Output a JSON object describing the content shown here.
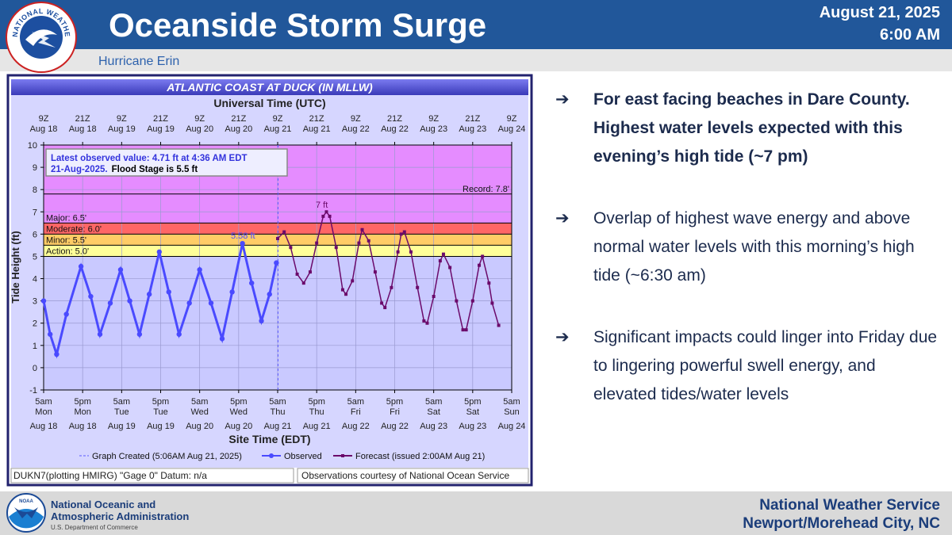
{
  "header": {
    "title": "Oceanside Storm Surge",
    "subtitle": "Hurricane Erin",
    "date": "August 21, 2025",
    "time": "6:00 AM",
    "logo_text": "NATIONAL WEATHER SERVICE"
  },
  "chart_data": {
    "type": "line",
    "title": "ATLANTIC COAST AT DUCK (IN MLLW)",
    "top_axis_label": "Universal Time (UTC)",
    "xlabel": "Site Time (EDT)",
    "ylabel": "Tide Height (ft)",
    "xlim": [
      "Aug 18 05:00",
      "Aug 24 05:00"
    ],
    "ylim": [
      -1,
      10
    ],
    "yticks": [
      -1,
      0,
      1,
      2,
      3,
      4,
      5,
      6,
      7,
      8,
      9,
      10
    ],
    "grid": true,
    "xticks": [
      {
        "value": "Aug 18 05:00",
        "label": "5am",
        "day": "Mon",
        "date": "Aug 18"
      },
      {
        "value": "Aug 18 17:00",
        "label": "5pm",
        "day": "Mon",
        "date": "Aug 18"
      },
      {
        "value": "Aug 19 05:00",
        "label": "5am",
        "day": "Tue",
        "date": "Aug 19"
      },
      {
        "value": "Aug 19 17:00",
        "label": "5pm",
        "day": "Tue",
        "date": "Aug 19"
      },
      {
        "value": "Aug 20 05:00",
        "label": "5am",
        "day": "Wed",
        "date": "Aug 20"
      },
      {
        "value": "Aug 20 17:00",
        "label": "5pm",
        "day": "Wed",
        "date": "Aug 20"
      },
      {
        "value": "Aug 21 05:00",
        "label": "5am",
        "day": "Thu",
        "date": "Aug 21"
      },
      {
        "value": "Aug 21 17:00",
        "label": "5pm",
        "day": "Thu",
        "date": "Aug 21"
      },
      {
        "value": "Aug 22 05:00",
        "label": "5am",
        "day": "Fri",
        "date": "Aug 22"
      },
      {
        "value": "Aug 22 17:00",
        "label": "5pm",
        "day": "Fri",
        "date": "Aug 22"
      },
      {
        "value": "Aug 23 05:00",
        "label": "5am",
        "day": "Sat",
        "date": "Aug 23"
      },
      {
        "value": "Aug 23 17:00",
        "label": "5pm",
        "day": "Sat",
        "date": "Aug 23"
      },
      {
        "value": "Aug 24 05:00",
        "label": "5am",
        "day": "Sun",
        "date": "Aug 24"
      }
    ],
    "x2ticks": [
      {
        "value": "Aug 18 05:00",
        "label": "9Z",
        "date": "Aug 18"
      },
      {
        "value": "Aug 18 17:00",
        "label": "21Z",
        "date": "Aug 18"
      },
      {
        "value": "Aug 19 05:00",
        "label": "9Z",
        "date": "Aug 19"
      },
      {
        "value": "Aug 19 17:00",
        "label": "21Z",
        "date": "Aug 19"
      },
      {
        "value": "Aug 20 05:00",
        "label": "9Z",
        "date": "Aug 20"
      },
      {
        "value": "Aug 20 17:00",
        "label": "21Z",
        "date": "Aug 20"
      },
      {
        "value": "Aug 21 05:00",
        "label": "9Z",
        "date": "Aug 21"
      },
      {
        "value": "Aug 21 17:00",
        "label": "21Z",
        "date": "Aug 21"
      },
      {
        "value": "Aug 22 05:00",
        "label": "9Z",
        "date": "Aug 22"
      },
      {
        "value": "Aug 22 17:00",
        "label": "21Z",
        "date": "Aug 22"
      },
      {
        "value": "Aug 23 05:00",
        "label": "9Z",
        "date": "Aug 23"
      },
      {
        "value": "Aug 23 17:00",
        "label": "21Z",
        "date": "Aug 23"
      },
      {
        "value": "Aug 24 05:00",
        "label": "9Z",
        "date": "Aug 24"
      }
    ],
    "flood_categories": [
      {
        "value": 5.0,
        "label": "Action: 5.0'",
        "color": "#ffff99"
      },
      {
        "value": 5.5,
        "label": "Minor: 5.5'",
        "color": "#ffcc66"
      },
      {
        "value": 6.0,
        "label": "Moderate: 6.0'",
        "color": "#ff6666"
      },
      {
        "value": 6.5,
        "label": "Major: 6.5'",
        "color": "#e58cff"
      }
    ],
    "record": {
      "value": 7.8,
      "label": "Record: 7.8'"
    },
    "created_line": {
      "x": "Aug 21 05:06",
      "label": "Graph Created (5:06AM Aug 21, 2025)",
      "color": "#5a5aff"
    },
    "info_box": {
      "line1": "Latest observed value: 4.71 ft at 4:36 AM EDT",
      "line2a": "21-Aug-2025.",
      "line2b": "Flood Stage is 5.5 ft"
    },
    "annotations": [
      "5.58 ft",
      "7 ft"
    ],
    "series": [
      {
        "name": "Observed",
        "color": "#4a4aff",
        "marker": "circle",
        "x": [
          "Aug 18 05:00",
          "Aug 18 07:00",
          "Aug 18 09:00",
          "Aug 18 12:00",
          "Aug 18 16:30",
          "Aug 18 19:30",
          "Aug 18 22:20",
          "Aug 19 01:30",
          "Aug 19 04:40",
          "Aug 19 07:30",
          "Aug 19 10:30",
          "Aug 19 13:30",
          "Aug 19 16:35",
          "Aug 19 19:30",
          "Aug 19 22:40",
          "Aug 20 01:50",
          "Aug 20 05:00",
          "Aug 20 08:30",
          "Aug 20 11:55",
          "Aug 20 15:00",
          "Aug 20 18:10",
          "Aug 20 21:00",
          "Aug 21 00:00",
          "Aug 21 02:30",
          "Aug 21 04:36"
        ],
        "values": [
          3.0,
          1.5,
          0.6,
          2.4,
          4.55,
          3.2,
          1.5,
          2.9,
          4.4,
          3.0,
          1.5,
          3.3,
          5.2,
          3.4,
          1.5,
          2.9,
          4.4,
          2.9,
          1.3,
          3.4,
          5.58,
          3.8,
          2.1,
          3.3,
          4.71
        ]
      },
      {
        "name": "Forecast (issued 2:00AM Aug 21)",
        "color": "#6b0a6b",
        "marker": "square",
        "x": [
          "Aug 21 05:00",
          "Aug 21 07:00",
          "Aug 21 09:00",
          "Aug 21 11:00",
          "Aug 21 13:00",
          "Aug 21 15:00",
          "Aug 21 17:00",
          "Aug 21 19:00",
          "Aug 21 20:00",
          "Aug 21 21:00",
          "Aug 21 23:00",
          "Aug 22 01:00",
          "Aug 22 02:00",
          "Aug 22 04:00",
          "Aug 22 06:00",
          "Aug 22 07:00",
          "Aug 22 09:00",
          "Aug 22 11:00",
          "Aug 22 13:00",
          "Aug 22 14:00",
          "Aug 22 16:00",
          "Aug 22 18:00",
          "Aug 22 19:00",
          "Aug 22 20:00",
          "Aug 22 22:00",
          "Aug 23 00:00",
          "Aug 23 02:00",
          "Aug 23 03:00",
          "Aug 23 05:00",
          "Aug 23 07:00",
          "Aug 23 08:00",
          "Aug 23 10:00",
          "Aug 23 12:00",
          "Aug 23 14:00",
          "Aug 23 15:00",
          "Aug 23 17:00",
          "Aug 23 19:00",
          "Aug 23 20:00",
          "Aug 23 22:00",
          "Aug 23 23:00",
          "Aug 24 01:00"
        ],
        "values": [
          5.8,
          6.1,
          5.4,
          4.2,
          3.8,
          4.3,
          5.6,
          6.8,
          7.0,
          6.8,
          5.4,
          3.5,
          3.3,
          3.9,
          5.6,
          6.2,
          5.7,
          4.3,
          2.9,
          2.7,
          3.6,
          5.2,
          6.0,
          6.1,
          5.2,
          3.6,
          2.1,
          2.0,
          3.2,
          4.8,
          5.1,
          4.5,
          3.0,
          1.7,
          1.7,
          3.0,
          4.6,
          5.0,
          3.8,
          2.9,
          1.9
        ]
      }
    ],
    "footer_left": "DUKN7(plotting HMIRG) \"Gage 0\" Datum: n/a",
    "footer_right": "Observations courtesy of National Ocean Service"
  },
  "bullet_marker": "➔",
  "bullets": [
    {
      "text": "For east facing beaches in Dare County. Highest water levels expected with this evening’s high tide (~7 pm)",
      "bold": true
    },
    {
      "text": "Overlap of highest wave energy and above normal water levels with this morning’s high tide (~6:30 am)",
      "bold": false
    },
    {
      "text": "Significant impacts could linger into Friday due to lingering powerful swell energy, and elevated tides/water levels",
      "bold": false
    }
  ],
  "footer": {
    "noaa_logo_text": "NOAA",
    "org_line1": "National Oceanic and",
    "org_line2": "Atmospheric Administration",
    "dept": "U.S. Department of Commerce",
    "office_line1": "National Weather Service",
    "office_line2": "Newport/Morehead City, NC"
  }
}
